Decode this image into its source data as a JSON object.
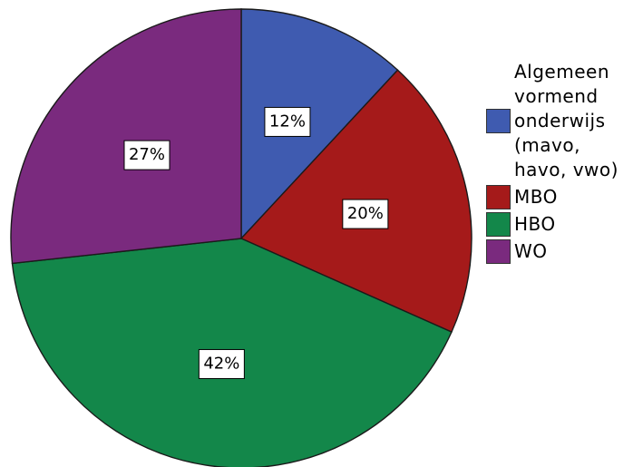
{
  "chart_data": {
    "type": "pie",
    "categories": [
      "Algemeen\nvormend\nonderwijs\n(mavo,\nhavo, vwo)",
      "MBO",
      "HBO",
      "WO"
    ],
    "values": [
      12,
      20,
      42,
      27
    ],
    "data_labels": [
      "12%",
      "20%",
      "42%",
      "27%"
    ],
    "colors": [
      "#3f5bb0",
      "#a51a1a",
      "#13874a",
      "#7a2a7e"
    ],
    "start_angle_deg": 0,
    "direction": "clockwise",
    "legend_position": "right"
  }
}
